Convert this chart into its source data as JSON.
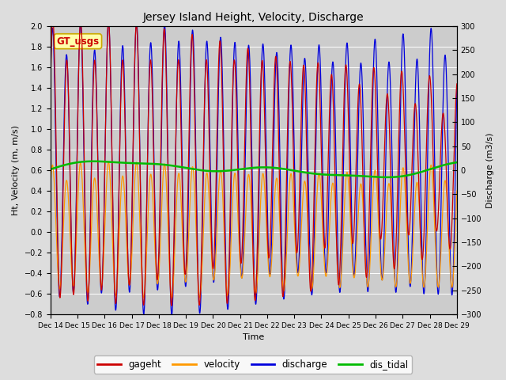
{
  "title": "Jersey Island Height, Velocity, Discharge",
  "xlabel": "Time",
  "ylabel_left": "Ht, Velocity (m, m/s)",
  "ylabel_right": "Discharge (m3/s)",
  "ylim_left": [
    -0.8,
    2.0
  ],
  "ylim_right": [
    -300,
    300
  ],
  "background_color": "#dddddd",
  "plot_bg_color": "#cccccc",
  "colors": {
    "gageht": "#cc0000",
    "velocity": "#ff9900",
    "discharge": "#0000dd",
    "dis_tidal": "#00bb00"
  },
  "gt_usgs_box_color": "#ffffaa",
  "gt_usgs_border_color": "#ccaa00",
  "gt_usgs_text_color": "#cc0000",
  "tick_label_dates": [
    "Dec 14",
    "Dec 15",
    "Dec 16",
    "Dec 17",
    "Dec 18",
    "Dec 19",
    "Dec 20",
    "Dec 21",
    "Dec 22",
    "Dec 23",
    "Dec 24",
    "Dec 25",
    "Dec 26",
    "Dec 27",
    "Dec 28",
    "Dec 29"
  ],
  "right_yticks": [
    -300,
    -250,
    -200,
    -150,
    -100,
    -50,
    0,
    50,
    100,
    150,
    200,
    250,
    300
  ],
  "left_yticks": [
    -0.8,
    -0.6,
    -0.4,
    -0.2,
    0.0,
    0.2,
    0.4,
    0.6,
    0.8,
    1.0,
    1.2,
    1.4,
    1.6,
    1.8,
    2.0
  ],
  "n_points": 3000,
  "days": 15,
  "T_semi": 0.5175,
  "T_diurnal": 1.0,
  "T_beat": 14.0
}
